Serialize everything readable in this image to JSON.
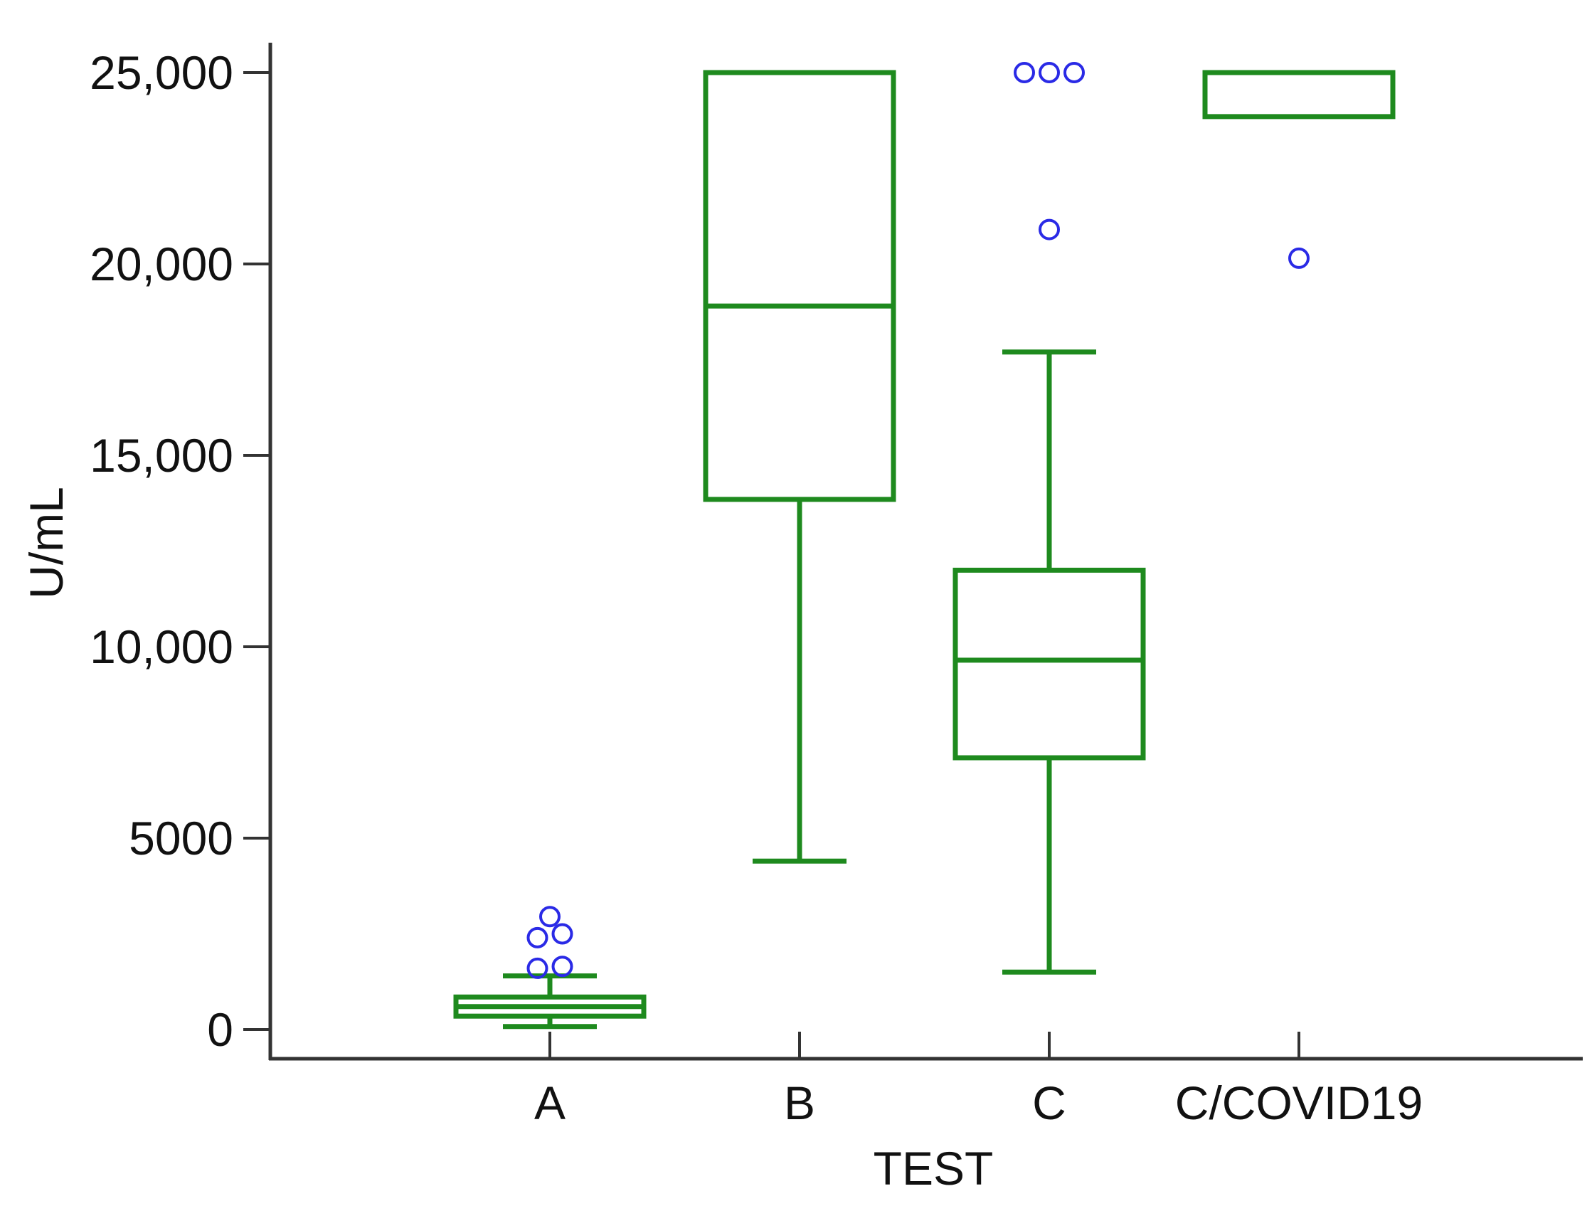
{
  "chart_data": {
    "type": "boxplot",
    "title": "",
    "xlabel": "TEST",
    "ylabel": "U/mL",
    "ylim": [
      0,
      25000
    ],
    "y_ticks": [
      0,
      5000,
      10000,
      15000,
      20000,
      25000
    ],
    "y_tick_labels": [
      "0",
      "5000",
      "10,000",
      "15,000",
      "20,000",
      "25,000"
    ],
    "categories": [
      "A",
      "B",
      "C",
      "C/COVID19"
    ],
    "colors": {
      "box": "#1e8a1e",
      "outlier": "#2a2ae6",
      "axis": "#333333"
    },
    "boxes": [
      {
        "category": "A",
        "whisker_low": 80,
        "q1": 350,
        "median": 600,
        "q3": 850,
        "whisker_high": 1400,
        "outliers": [
          {
            "offset": -0.05,
            "value": 1600
          },
          {
            "offset": 0.05,
            "value": 1650
          },
          {
            "offset": -0.05,
            "value": 2400
          },
          {
            "offset": 0.05,
            "value": 2500
          },
          {
            "offset": 0.0,
            "value": 2950
          }
        ]
      },
      {
        "category": "B",
        "whisker_low": 4400,
        "q1": 13850,
        "median": 18900,
        "q3": 25000,
        "whisker_high": 25000,
        "outliers": []
      },
      {
        "category": "C",
        "whisker_low": 1500,
        "q1": 7100,
        "median": 9650,
        "q3": 12000,
        "whisker_high": 17700,
        "outliers": [
          {
            "offset": 0.0,
            "value": 20900
          },
          {
            "offset": -0.1,
            "value": 25000
          },
          {
            "offset": 0.0,
            "value": 25000
          },
          {
            "offset": 0.1,
            "value": 25000
          }
        ]
      },
      {
        "category": "C/COVID19",
        "whisker_low": 23850,
        "q1": 23850,
        "median": 25000,
        "q3": 25000,
        "whisker_high": 25000,
        "outliers": [
          {
            "offset": 0.0,
            "value": 20150
          }
        ]
      }
    ]
  }
}
